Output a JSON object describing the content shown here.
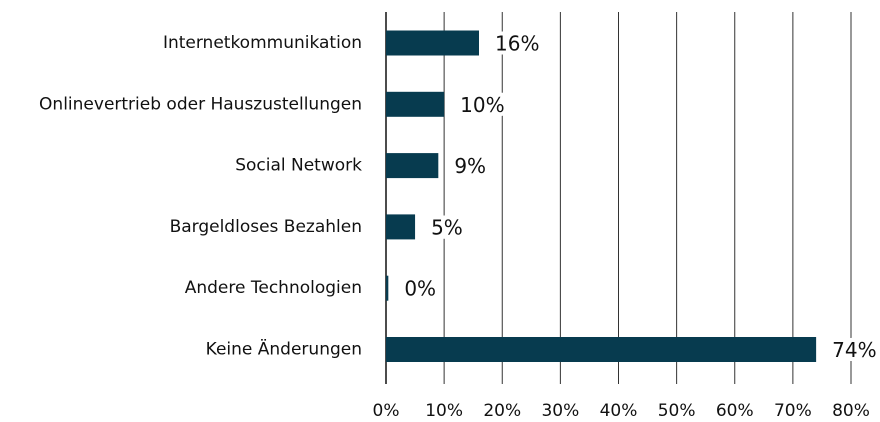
{
  "chart_data": {
    "type": "bar",
    "orientation": "horizontal",
    "categories": [
      "Internetkommunikation",
      "Onlinevertrieb oder Hauszustellungen",
      "Social Network",
      "Bargeldloses Bezahlen",
      "Andere Technologien",
      "Keine Änderungen"
    ],
    "values": [
      16,
      10,
      9,
      5,
      0.4,
      74
    ],
    "value_labels": [
      "16%",
      "10%",
      "9%",
      "5%",
      "0%",
      "74%"
    ],
    "color": "#073b4f",
    "xlim": [
      0,
      80
    ],
    "xticks": [
      {
        "value": 0,
        "label": "0%"
      },
      {
        "value": 10,
        "label": "10%"
      },
      {
        "value": 20,
        "label": "20%"
      },
      {
        "value": 30,
        "label": "30%"
      },
      {
        "value": 40,
        "label": "40%"
      },
      {
        "value": 50,
        "label": "50%"
      },
      {
        "value": 60,
        "label": "60%"
      },
      {
        "value": 70,
        "label": "70%"
      },
      {
        "value": 80,
        "label": "80%"
      }
    ],
    "grid": true
  }
}
